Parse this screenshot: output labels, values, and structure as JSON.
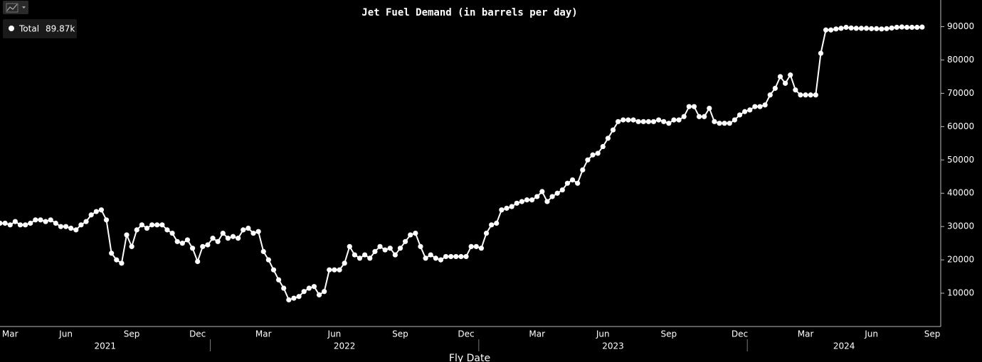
{
  "chart_data": {
    "type": "line",
    "title": "Jet Fuel Demand (in barrels per day)",
    "x_label": "Fly Date",
    "categories": [
      null,
      null,
      "Mar",
      null,
      null,
      null,
      null,
      null,
      null,
      null,
      null,
      null,
      null,
      "Jun",
      null,
      null,
      null,
      null,
      null,
      null,
      null,
      null,
      null,
      null,
      null,
      null,
      "Sep",
      null,
      null,
      null,
      null,
      null,
      null,
      null,
      null,
      null,
      null,
      null,
      null,
      "Dec",
      null,
      null,
      null,
      null,
      null,
      null,
      null,
      null,
      null,
      null,
      null,
      null,
      "Mar",
      null,
      null,
      null,
      null,
      null,
      null,
      null,
      null,
      null,
      null,
      null,
      null,
      null,
      "Jun",
      null,
      null,
      null,
      null,
      null,
      null,
      null,
      null,
      null,
      null,
      null,
      null,
      "Sep",
      null,
      null,
      null,
      null,
      null,
      null,
      null,
      null,
      null,
      null,
      null,
      null,
      "Dec",
      null,
      null,
      null,
      null,
      null,
      null,
      null,
      null,
      null,
      null,
      null,
      null,
      null,
      "Mar",
      null,
      null,
      null,
      null,
      null,
      null,
      null,
      null,
      null,
      null,
      null,
      null,
      "Jun",
      null,
      null,
      null,
      null,
      null,
      null,
      null,
      null,
      null,
      null,
      null,
      null,
      "Sep",
      null,
      null,
      null,
      null,
      null,
      null,
      null,
      null,
      null,
      null,
      null,
      null,
      null,
      "Dec",
      null,
      null,
      null,
      null,
      null,
      null,
      null,
      null,
      null,
      null,
      null,
      null,
      "Mar",
      null,
      null,
      null,
      null,
      null,
      null,
      null,
      null,
      null,
      null,
      null,
      null,
      "Jun",
      null,
      null,
      null,
      null,
      null,
      null,
      null,
      null,
      null,
      null,
      null,
      "Sep"
    ],
    "category_groups": [
      {
        "label": "2021",
        "size": 42
      },
      {
        "label": "2022",
        "size": 53
      },
      {
        "label": "2023",
        "size": 53
      },
      {
        "label": "2024",
        "size": 37
      }
    ],
    "series": [
      {
        "name": "Total",
        "color": "#ffffff",
        "last_value_label": "89.87k",
        "values": [
          31000,
          31000,
          30500,
          31500,
          30500,
          30500,
          31000,
          32000,
          32000,
          31500,
          32000,
          31000,
          30000,
          30000,
          29500,
          29000,
          30500,
          31500,
          33500,
          34500,
          35000,
          32000,
          22000,
          20000,
          19000,
          27500,
          24000,
          29000,
          30500,
          29500,
          30500,
          30500,
          30500,
          29000,
          28000,
          25500,
          25000,
          26000,
          23500,
          19500,
          24000,
          24500,
          26500,
          25500,
          28000,
          26500,
          27000,
          26500,
          29000,
          29500,
          28000,
          28500,
          22500,
          20000,
          17000,
          14000,
          11500,
          8000,
          8500,
          9000,
          10500,
          11500,
          12000,
          9500,
          10500,
          17000,
          17000,
          17000,
          19000,
          24000,
          21500,
          20500,
          21500,
          20500,
          22500,
          24000,
          23000,
          23500,
          21500,
          23500,
          25500,
          27500,
          28000,
          24000,
          20500,
          21500,
          20500,
          20000,
          21000,
          21000,
          21000,
          21000,
          21000,
          24000,
          24000,
          23500,
          28000,
          30500,
          31000,
          35000,
          35500,
          36000,
          37000,
          37500,
          38000,
          38000,
          39000,
          40500,
          37500,
          39000,
          40000,
          41000,
          43000,
          44000,
          43000,
          47000,
          50000,
          51500,
          52000,
          54000,
          56500,
          59000,
          61500,
          62000,
          62000,
          62000,
          61500,
          61500,
          61500,
          61500,
          62000,
          61500,
          61000,
          62000,
          62000,
          63000,
          66000,
          66000,
          63000,
          63000,
          65500,
          61500,
          61000,
          61000,
          61000,
          62000,
          63500,
          64500,
          65000,
          66000,
          66000,
          66500,
          69500,
          71500,
          75000,
          73000,
          75500,
          71000,
          69500,
          69500,
          69500,
          69500,
          82000,
          89000,
          89000,
          89300,
          89500,
          89800,
          89600,
          89500,
          89500,
          89500,
          89400,
          89400,
          89300,
          89400,
          89600,
          89800,
          89900,
          89800,
          89800,
          89800,
          89870,
          null,
          null
        ]
      }
    ],
    "ylim": [
      0,
      98000
    ],
    "yticks": [
      10000,
      20000,
      30000,
      40000,
      50000,
      60000,
      70000,
      80000,
      90000
    ],
    "y_axis_side": "right",
    "grid": false,
    "legend": "top-left"
  }
}
